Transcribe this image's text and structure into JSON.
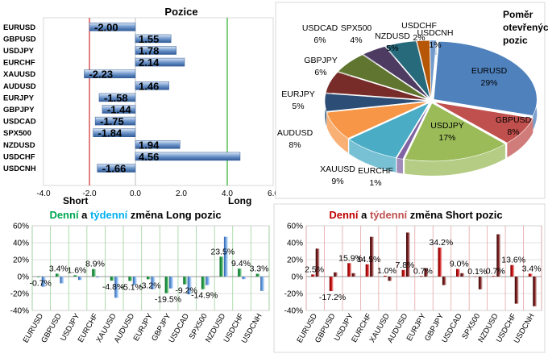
{
  "chart_data": [
    {
      "type": "bar",
      "orientation": "horizontal",
      "title": "Pozice",
      "categories": [
        "EURUSD",
        "GBPUSD",
        "USDJPY",
        "EURCHF",
        "XAUUSD",
        "AUDUSD",
        "EURJPY",
        "GBPJPY",
        "USDCAD",
        "SPX500",
        "NZDUSD",
        "USDCHF",
        "USDCNH"
      ],
      "values": [
        -2.0,
        1.55,
        1.78,
        2.14,
        -2.23,
        1.46,
        -1.58,
        -1.44,
        -1.75,
        -1.84,
        1.94,
        4.56,
        -1.66
      ],
      "value_labels": [
        "-2.00",
        "1.55",
        "1.78",
        "2.14",
        "-2.23",
        "1.46",
        "-1.58",
        "-1.44",
        "-1.75",
        "-1.84",
        "1.94",
        "4.56",
        "-1.66"
      ],
      "xlim": [
        -4.0,
        6.0
      ],
      "xticks": [
        "-4.0",
        "-2.0",
        "0.0",
        "2.0",
        "4.0",
        "6.0"
      ],
      "thresholds": [
        -2.0,
        4.0
      ],
      "annotations": [
        "Short",
        "Long"
      ],
      "colors": {
        "bar": "#4f81bd",
        "bar_light": "#c6d9f1",
        "short_line": "#c00000",
        "long_line": "#00a000"
      }
    },
    {
      "type": "pie",
      "title_lines": [
        "Poměr",
        "otevřených",
        "pozic"
      ],
      "slices": [
        {
          "label": "EURUSD",
          "value": 29,
          "text": "29%",
          "color": "#4f81bd"
        },
        {
          "label": "GBPUSD",
          "value": 8,
          "text": "8%",
          "color": "#c0504d"
        },
        {
          "label": "USDJPY",
          "value": 17,
          "text": "17%",
          "color": "#9bbb59"
        },
        {
          "label": "EURCHF",
          "value": 1,
          "text": "1%",
          "color": "#8064a2"
        },
        {
          "label": "XAUUSD",
          "value": 9,
          "text": "9%",
          "color": "#4bacc6"
        },
        {
          "label": "AUDUSD",
          "value": 8,
          "text": "8%",
          "color": "#f79646"
        },
        {
          "label": "EURJPY",
          "value": 5,
          "text": "5%",
          "color": "#2c4d75"
        },
        {
          "label": "GBPJPY",
          "value": 6,
          "text": "6%",
          "color": "#772c2a"
        },
        {
          "label": "USDCAD",
          "value": 6,
          "text": "6%",
          "color": "#5f7530"
        },
        {
          "label": "SPX500",
          "value": 4,
          "text": "4%",
          "color": "#4d3b62"
        },
        {
          "label": "NZDUSD",
          "value": 5,
          "text": "5%",
          "color": "#276a7c"
        },
        {
          "label": "USDCHF",
          "value": 2,
          "text": "2%",
          "color": "#b65708"
        },
        {
          "label": "USDCNH",
          "value": 1,
          "text": "1%",
          "color": "#729aca"
        }
      ]
    },
    {
      "type": "bar",
      "title_parts": [
        {
          "text": "Denní",
          "color": "#00a651"
        },
        {
          "text": " a ",
          "color": "#000000"
        },
        {
          "text": "týdenní",
          "color": "#00b0f0"
        },
        {
          "text": " změna Long pozic",
          "color": "#000000"
        }
      ],
      "categories": [
        "EURUSD",
        "GBPUSD",
        "USDJPY",
        "EURCHF",
        "XAUUSD",
        "AUDUSD",
        "EURJPY",
        "GBPJPY",
        "USDCAD",
        "SPX500",
        "NZDUSD",
        "USDCHF",
        "USDCNH"
      ],
      "series": [
        {
          "name": "Denní",
          "values": [
            -0.7,
            3.4,
            1.6,
            8.9,
            -4.8,
            -5.1,
            -3.2,
            -19.5,
            -9.2,
            -14.9,
            23.5,
            9.4,
            3.3
          ],
          "color": "#00a651"
        },
        {
          "name": "Týdenní",
          "values": [
            -12,
            -8,
            -4,
            -1,
            -25,
            -10,
            -15,
            -14,
            -21,
            -10,
            47,
            -3,
            -17
          ],
          "color": "#4f81bd"
        }
      ],
      "data_labels": [
        "-0.7%",
        "3.4%",
        "1.6%",
        "8.9%",
        "-4.8%",
        "-5.1%",
        "-3.2%",
        "-19.5%",
        "-9.2%",
        "-14.9%",
        "23.5%",
        "9.4%",
        "3.3%"
      ],
      "ylim": [
        -40,
        60
      ],
      "yticks": [
        "60%",
        "40%",
        "20%",
        "0%",
        "-20%",
        "-40%"
      ]
    },
    {
      "type": "bar",
      "title_parts": [
        {
          "text": "Denní",
          "color": "#c00000"
        },
        {
          "text": " a ",
          "color": "#000000"
        },
        {
          "text": "týdenní",
          "color": "#c0504d"
        },
        {
          "text": " změna Short pozic",
          "color": "#000000"
        }
      ],
      "categories": [
        "EURUSD",
        "GBPUSD",
        "USDJPY",
        "EURCHF",
        "XAUUSD",
        "AUDUSD",
        "EURJPY",
        "GBPJPY",
        "USDCAD",
        "SPX500",
        "NZDUSD",
        "USDCHF",
        "USDCNH"
      ],
      "series": [
        {
          "name": "Denní",
          "values": [
            2.5,
            -17.2,
            15.9,
            14.5,
            1.0,
            7.8,
            0.7,
            34.2,
            9.0,
            0.1,
            0.7,
            13.6,
            3.4
          ],
          "color": "#c00000"
        },
        {
          "name": "Týdenní",
          "values": [
            33,
            5,
            4,
            47,
            -5,
            52,
            10,
            -10,
            4,
            -15,
            50,
            -32,
            -35
          ],
          "color": "#7f1f1f"
        }
      ],
      "data_labels": [
        "2.5%",
        "-17.2%",
        "15.9%",
        "14.5%",
        "1.0%",
        "7.8%",
        "0.7%",
        "34.2%",
        "9.0%",
        "0.1%",
        "0.7%",
        "13.6%",
        "3.4%"
      ],
      "ylim": [
        -40,
        60
      ],
      "yticks": [
        "60%",
        "40%",
        "20%",
        "0%",
        "-20%",
        "-40%"
      ]
    }
  ]
}
